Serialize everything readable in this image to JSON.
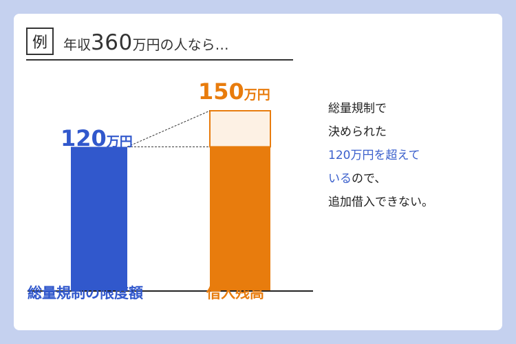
{
  "header": {
    "example_label": "例",
    "text_before": "年収",
    "text_number": "360",
    "text_after": "万円の人なら…"
  },
  "chart_data": {
    "type": "bar",
    "categories": [
      "総量規制の限度額",
      "借入残高"
    ],
    "values": [
      120,
      150
    ],
    "value_labels": [
      {
        "number": "120",
        "unit": "万円"
      },
      {
        "number": "150",
        "unit": "万円"
      }
    ],
    "colors": [
      "#3158cc",
      "#e87c0d"
    ],
    "excess_color": "#fdf1e4",
    "ylim": [
      0,
      150
    ]
  },
  "note": {
    "line1": "総量規制で",
    "line2": "決められた",
    "line3_blue": "120万円を超えて",
    "line4_blue": "いる",
    "line4_rest": "ので、",
    "line5": "追加借入できない。"
  }
}
